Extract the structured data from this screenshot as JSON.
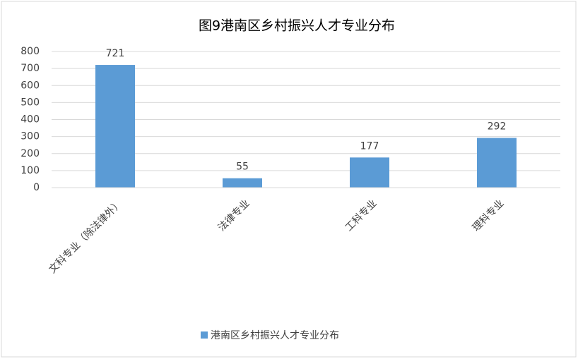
{
  "chart_data": {
    "type": "bar",
    "title": "图9港南区乡村振兴人才专业分布",
    "categories": [
      "文科专业（除法律外）",
      "法律专业",
      "工科专业",
      "理科专业"
    ],
    "series": [
      {
        "name": "港南区乡村振兴人才专业分布",
        "color": "#5b9bd5",
        "values": [
          721,
          55,
          177,
          292
        ]
      }
    ],
    "ylim": [
      0,
      800
    ],
    "yticks": [
      0,
      100,
      200,
      300,
      400,
      500,
      600,
      700,
      800
    ],
    "grid": true,
    "legend": "bottom"
  }
}
